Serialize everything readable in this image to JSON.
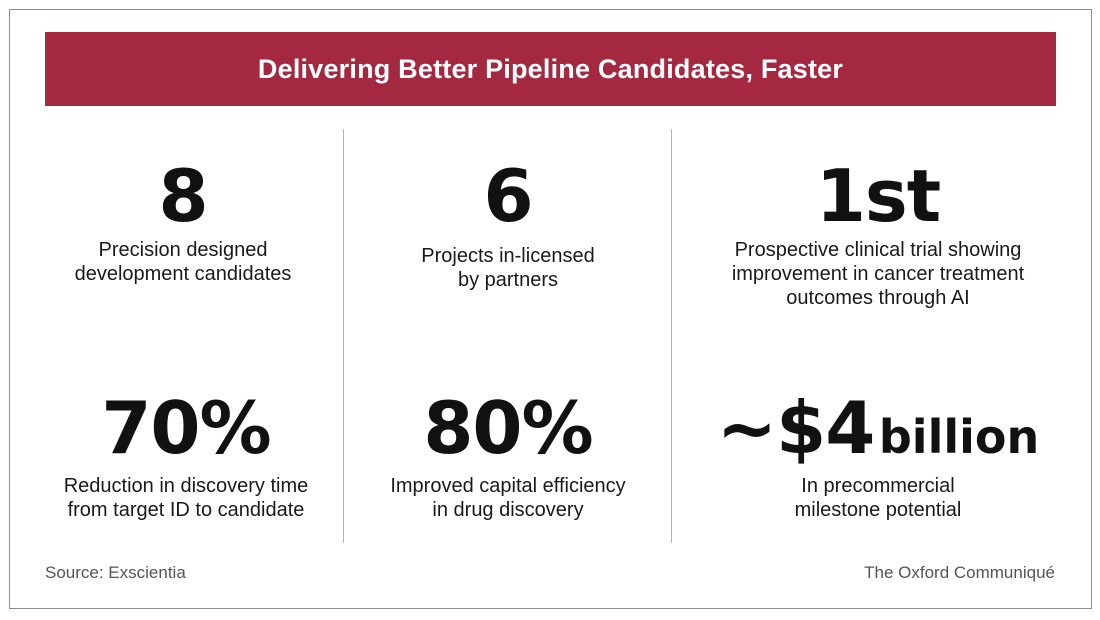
{
  "title": "Delivering Better Pipeline Candidates, Faster",
  "stats": [
    {
      "value": "8",
      "label_lines": [
        "Precision designed",
        "development candidates"
      ]
    },
    {
      "value": "6",
      "label_lines": [
        "Projects in-licensed",
        "by partners"
      ]
    },
    {
      "value": "1st",
      "label_lines": [
        "Prospective clinical trial showing",
        "improvement in cancer treatment",
        "outcomes through AI"
      ]
    },
    {
      "value": "70%",
      "label_lines": [
        "Reduction in discovery time",
        "from target ID to candidate"
      ]
    },
    {
      "value": "80%",
      "label_lines": [
        "Improved capital efficiency",
        "in drug discovery"
      ]
    },
    {
      "value_main": "~$4",
      "value_unit": "billion",
      "label_lines": [
        "In precommercial",
        "milestone potential"
      ]
    }
  ],
  "footer": {
    "source": "Source: Exscientia",
    "credit": "The Oxford Communiqué"
  },
  "colors": {
    "banner": "#a52841",
    "text": "#111111",
    "muted": "#555555",
    "divider": "#b3b3b3"
  }
}
